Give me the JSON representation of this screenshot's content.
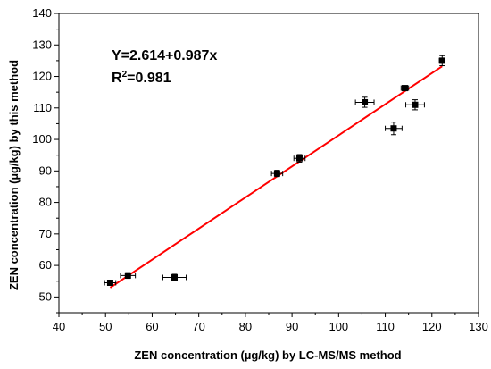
{
  "chart_data": {
    "type": "scatter",
    "xlabel": "ZEN concentration (µg/kg) by LC-MS/MS method",
    "ylabel": "ZEN concentration (µg/kg) by this method",
    "xlim": [
      40,
      130
    ],
    "ylim": [
      45,
      140
    ],
    "x_ticks": [
      40,
      50,
      60,
      70,
      80,
      90,
      100,
      110,
      120,
      130
    ],
    "y_ticks": [
      50,
      60,
      70,
      80,
      90,
      100,
      110,
      120,
      130,
      140
    ],
    "grid": false,
    "series": [
      {
        "marker": "square",
        "color": "#000000",
        "points": [
          {
            "x": 51.0,
            "y": 54.5,
            "xerr": 1.2,
            "yerr": 0.8
          },
          {
            "x": 54.8,
            "y": 56.8,
            "xerr": 1.6,
            "yerr": 0.9
          },
          {
            "x": 64.8,
            "y": 56.2,
            "xerr": 2.5,
            "yerr": 1.0
          },
          {
            "x": 86.8,
            "y": 89.2,
            "xerr": 1.2,
            "yerr": 1.0
          },
          {
            "x": 91.6,
            "y": 94.0,
            "xerr": 1.2,
            "yerr": 1.2
          },
          {
            "x": 105.6,
            "y": 111.8,
            "xerr": 2.0,
            "yerr": 1.6
          },
          {
            "x": 111.8,
            "y": 103.5,
            "xerr": 1.8,
            "yerr": 2.0
          },
          {
            "x": 114.2,
            "y": 116.3,
            "xerr": 0.8,
            "yerr": 0.6
          },
          {
            "x": 116.4,
            "y": 111.0,
            "xerr": 2.0,
            "yerr": 1.6
          },
          {
            "x": 122.2,
            "y": 125.0,
            "xerr": 0.6,
            "yerr": 1.6
          }
        ]
      }
    ],
    "fit_line": {
      "intercept": 2.614,
      "slope": 0.987,
      "x_range": [
        51.0,
        122.2
      ],
      "color": "#ff0000"
    },
    "annotations": {
      "equation": "Y=2.614+0.987x",
      "r2_prefix": "R",
      "r2_sup": "2",
      "r2_value": "=0.981"
    }
  }
}
